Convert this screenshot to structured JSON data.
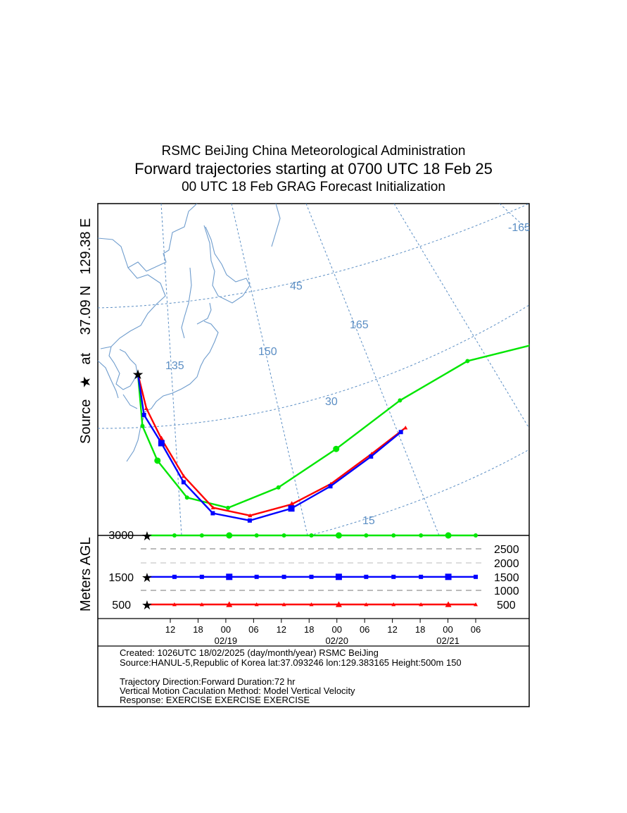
{
  "titles": {
    "line1": "RSMC BeiJing China Meteorological Administration",
    "line2": "Forward trajectories starting at 0700 UTC 18 Feb 25",
    "line3": "00 UTC 18 Feb    GRAG  Forecast Initialization"
  },
  "side_label": {
    "source": "Source",
    "at": "at",
    "lat": "37.09 N",
    "lon": "129.38 E",
    "star_icon": "star-icon"
  },
  "map": {
    "lon_labels": [
      "135",
      "150",
      "165",
      "-165"
    ],
    "lat_labels": [
      "45",
      "30",
      "15"
    ],
    "grid_color": "#5b8ec4",
    "coast_color": "#6e9ccd"
  },
  "height_panel": {
    "ylabel": "Meters AGL",
    "left_labels": [
      "3000",
      "1500",
      "500"
    ],
    "right_labels": [
      "2500",
      "2000",
      "1500",
      "1000",
      "500"
    ],
    "time_ticks": [
      "12",
      "18",
      "00",
      "06",
      "12",
      "18",
      "00",
      "06",
      "12",
      "18",
      "00",
      "06"
    ],
    "date_labels": [
      "02/19",
      "02/20",
      "02/21"
    ]
  },
  "chart_data": {
    "type": "line",
    "title": "Forward trajectories starting at 0700 UTC 18 Feb 25",
    "source": {
      "lat": 37.09,
      "lon": 129.38
    },
    "duration_hours": 72,
    "series": [
      {
        "name": "500",
        "color": "#ff0000",
        "marker": "triangle",
        "start_height_m": 500,
        "path_lonlat": [
          [
            129.4,
            37.1
          ],
          [
            130.5,
            35.6
          ],
          [
            132.5,
            34.2
          ],
          [
            135.5,
            32.3
          ],
          [
            139.5,
            30.3
          ],
          [
            144.5,
            29.0
          ],
          [
            150,
            28.3
          ],
          [
            155,
            28.0
          ],
          [
            160,
            28.3
          ],
          [
            164,
            28.7
          ]
        ],
        "height_m": [
          500,
          500,
          500,
          500,
          500,
          500,
          500,
          500,
          500,
          500,
          500,
          500,
          500
        ]
      },
      {
        "name": "1500",
        "color": "#0000ff",
        "marker": "square",
        "start_height_m": 1500,
        "path_lonlat": [
          [
            129.4,
            37.1
          ],
          [
            130.2,
            35.3
          ],
          [
            132.5,
            34.0
          ],
          [
            135.5,
            32.0
          ],
          [
            139.5,
            30.0
          ],
          [
            144.5,
            28.7
          ],
          [
            150,
            28.0
          ],
          [
            155,
            27.8
          ],
          [
            160,
            28.0
          ],
          [
            163.5,
            28.5
          ]
        ],
        "height_m": [
          1500,
          1500,
          1500,
          1500,
          1500,
          1500,
          1500,
          1500,
          1500,
          1500,
          1500,
          1500,
          1500
        ]
      },
      {
        "name": "3000",
        "color": "#00e600",
        "marker": "circle",
        "start_height_m": 3000,
        "path_lonlat": [
          [
            129.4,
            37.1
          ],
          [
            130.0,
            34.8
          ],
          [
            132.0,
            33.2
          ],
          [
            136.0,
            31.2
          ],
          [
            141.5,
            30.0
          ],
          [
            148.0,
            30.0
          ],
          [
            155.0,
            31.0
          ],
          [
            162.0,
            33.5
          ],
          [
            168.5,
            37.5
          ],
          [
            173.5,
            43.0
          ],
          [
            177.5,
            48.0
          ],
          [
            179.0,
            50.0
          ]
        ],
        "height_m": [
          3000,
          3000,
          3000,
          3000,
          3000,
          3000,
          3000,
          3000,
          3000,
          3000,
          3000,
          3000,
          3000
        ]
      }
    ],
    "height_ticks_m": [
      500,
      1000,
      1500,
      2000,
      2500,
      3000
    ]
  },
  "footer": {
    "line1": "Created: 1026UTC 18/02/2025 (day/month/year) RSMC BeiJing",
    "line2": "Source:HANUL-5,Republic of Korea  lat:37.093246  lon:129.383165  Height:500m 150",
    "line3": "Trajectory Direction:Forward Duration:72 hr",
    "line4": "Vertical Motion Caculation Method: Model Vertical Velocity",
    "line5": "Response: EXERCISE  EXERCISE  EXERCISE"
  }
}
